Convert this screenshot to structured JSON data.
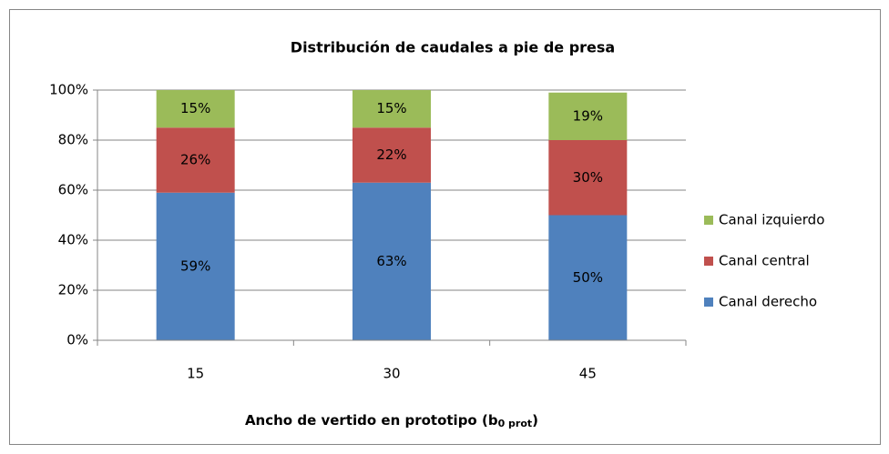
{
  "chart_data": {
    "type": "stacked_bar",
    "title": "Distribución de caudales a pie de presa",
    "x_label": "Ancho de vertido en prototipo  (b",
    "x_label_subscript": "0 prot",
    "x_label_suffix": ")",
    "categories": [
      "15",
      "30",
      "45"
    ],
    "series": [
      {
        "name": "Canal derecho",
        "color": "#4f81bd",
        "values": [
          59,
          63,
          50
        ],
        "value_labels": [
          "59%",
          "63%",
          "50%"
        ]
      },
      {
        "name": "Canal central",
        "color": "#c0504d",
        "values": [
          26,
          22,
          30
        ],
        "value_labels": [
          "26%",
          "22%",
          "30%"
        ]
      },
      {
        "name": "Canal izquierdo",
        "color": "#9bbb59",
        "values": [
          15,
          15,
          19
        ],
        "value_labels": [
          "15%",
          "15%",
          "19%"
        ]
      }
    ],
    "ylim": [
      0,
      100
    ],
    "yticks": [
      {
        "value": 0,
        "label": "0%"
      },
      {
        "value": 20,
        "label": "20%"
      },
      {
        "value": 40,
        "label": "40%"
      },
      {
        "value": 60,
        "label": "60%"
      },
      {
        "value": 80,
        "label": "80%"
      },
      {
        "value": 100,
        "label": "100%"
      }
    ],
    "grid": true,
    "legend": "right"
  }
}
